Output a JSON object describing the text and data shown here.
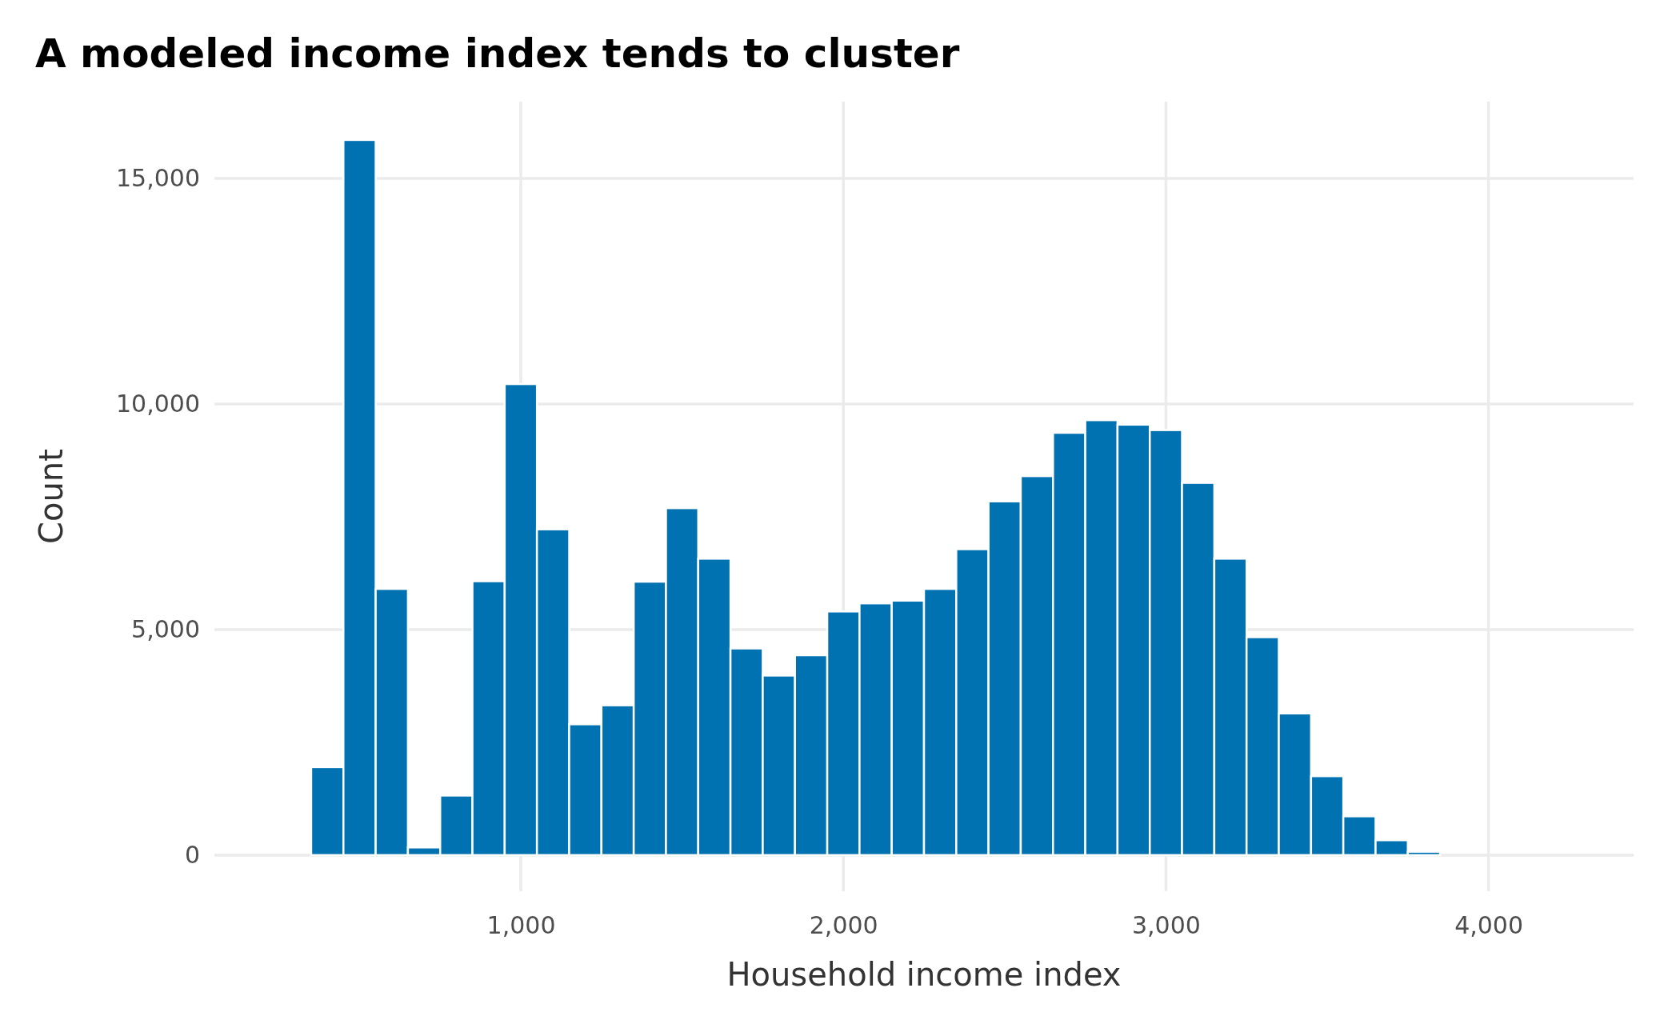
{
  "chart_data": {
    "type": "histogram",
    "title": "A modeled income index tends to cluster",
    "xlabel": "Household income index",
    "ylabel": "Count",
    "bins": [
      250,
      350,
      450,
      550,
      650,
      750,
      850,
      950,
      1050,
      1150,
      1250,
      1350,
      1450,
      1550,
      1650,
      1750,
      1850,
      1950,
      2050,
      2150,
      2250,
      2350,
      2450,
      2550,
      2650,
      2750,
      2850,
      2950,
      3050,
      3150,
      3250,
      3350,
      3450,
      3550,
      3650,
      3750,
      3850,
      3950,
      4050,
      4150,
      4250
    ],
    "values": [
      0,
      1950,
      15850,
      5900,
      170,
      1320,
      6070,
      10440,
      7220,
      2900,
      3320,
      6060,
      7690,
      6570,
      4580,
      3980,
      4430,
      5400,
      5580,
      5640,
      5900,
      6780,
      7840,
      8400,
      9360,
      9640,
      9540,
      9420,
      8250,
      6570,
      4830,
      3140,
      1750,
      860,
      330,
      75,
      0,
      0,
      0,
      0
    ],
    "color": "#0072b2",
    "xlim": [
      50,
      4450
    ],
    "ylim": [
      -800,
      16700
    ],
    "xticks": [
      {
        "value": 1000,
        "label": "1,000"
      },
      {
        "value": 2000,
        "label": "2,000"
      },
      {
        "value": 3000,
        "label": "3,000"
      },
      {
        "value": 4000,
        "label": "4,000"
      }
    ],
    "yticks": [
      0,
      {
        "value": 5000,
        "label": "5,000"
      },
      {
        "value": 10000,
        "label": "10,000"
      },
      {
        "value": 15000,
        "label": "15,000"
      }
    ],
    "grid": true
  }
}
